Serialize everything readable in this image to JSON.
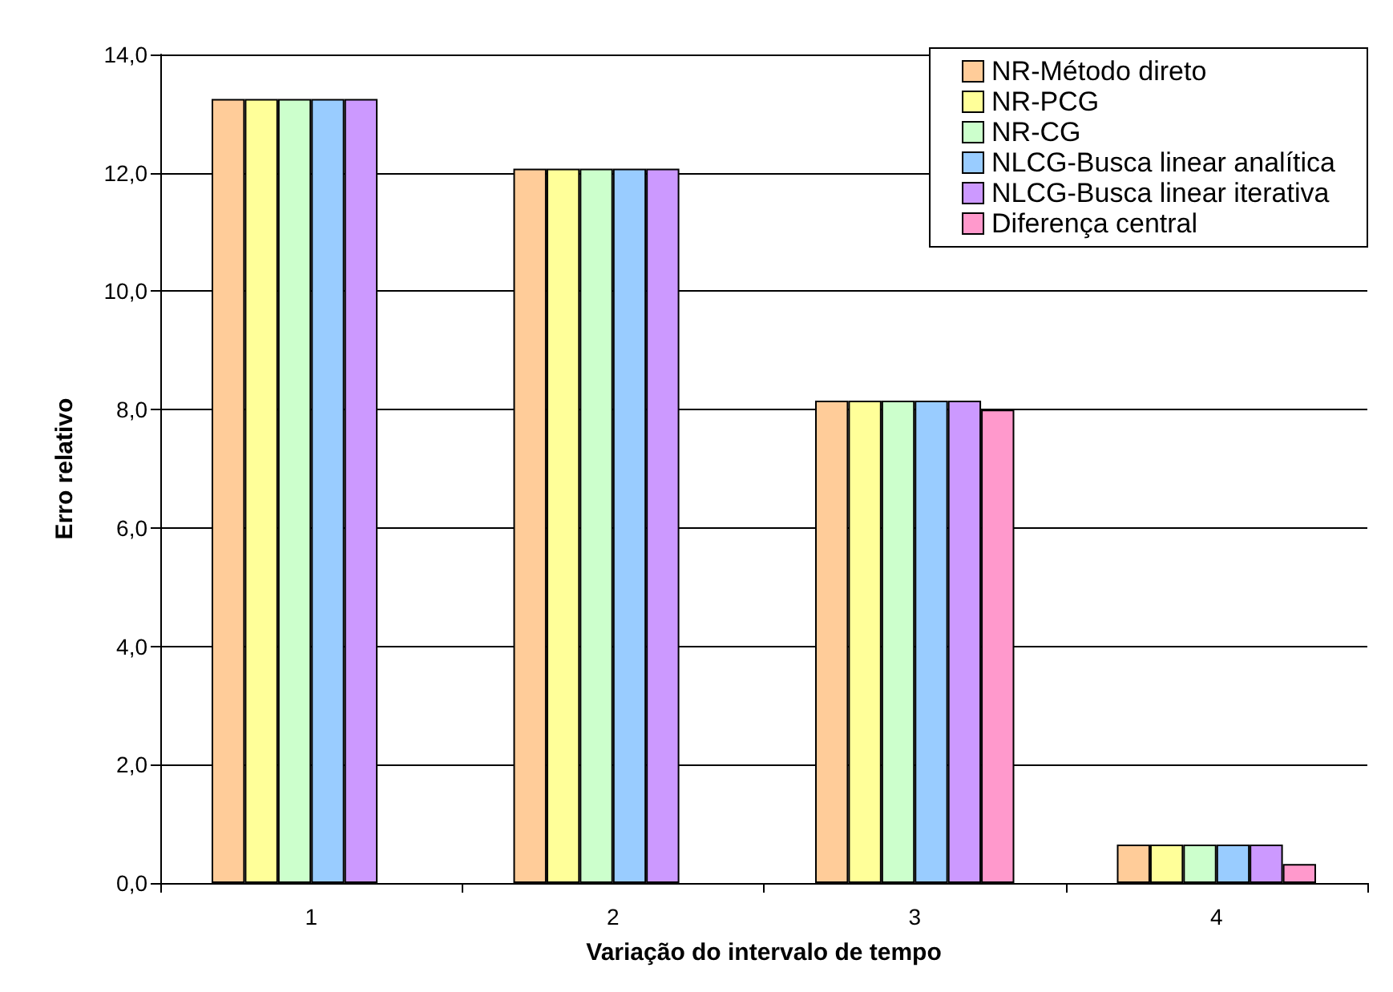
{
  "chart_data": {
    "type": "bar",
    "xlabel": "Variação do intervalo de tempo",
    "ylabel": "Erro relativo",
    "categories": [
      "1",
      "2",
      "3",
      "4"
    ],
    "series": [
      {
        "name": "NR-Método direto",
        "color": "#ffcc99",
        "values": [
          13.25,
          12.07,
          8.15,
          0.65
        ]
      },
      {
        "name": "NR-PCG",
        "color": "#ffff99",
        "values": [
          13.25,
          12.07,
          8.15,
          0.65
        ]
      },
      {
        "name": "NR-CG",
        "color": "#ccffcc",
        "values": [
          13.25,
          12.07,
          8.15,
          0.65
        ]
      },
      {
        "name": "NLCG-Busca linear analítica",
        "color": "#99ccff",
        "values": [
          13.25,
          12.07,
          8.15,
          0.65
        ]
      },
      {
        "name": "NLCG-Busca linear iterativa",
        "color": "#cc99ff",
        "values": [
          13.25,
          12.07,
          8.15,
          0.65
        ]
      },
      {
        "name": "Diferença central",
        "color": "#ff99cc",
        "values": [
          null,
          null,
          8.0,
          0.32
        ]
      }
    ],
    "ylim": [
      0,
      14
    ],
    "yticks": [
      {
        "value": 0,
        "label": "0,0"
      },
      {
        "value": 2,
        "label": "2,0"
      },
      {
        "value": 4,
        "label": "4,0"
      },
      {
        "value": 6,
        "label": "6,0"
      },
      {
        "value": 8,
        "label": "8,0"
      },
      {
        "value": 10,
        "label": "10,0"
      },
      {
        "value": 12,
        "label": "12,0"
      },
      {
        "value": 14,
        "label": "14,0"
      }
    ],
    "grid": "y",
    "legend": "top right"
  }
}
